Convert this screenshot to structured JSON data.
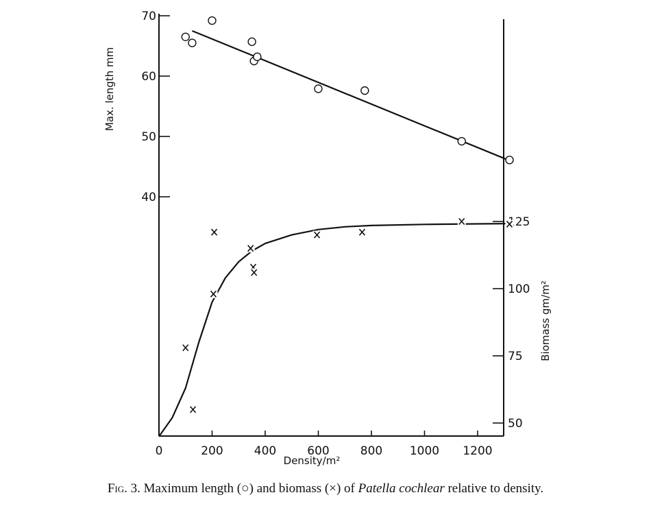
{
  "chart_data": {
    "type": "scatter",
    "xlabel": "Density/m²",
    "ylabel_left": "Max. length mm",
    "ylabel_right": "Biomass gm/m²",
    "xlim": [
      0,
      1340
    ],
    "x_ticks": [
      0,
      200,
      400,
      600,
      800,
      1000,
      1200
    ],
    "x_tick_labels": [
      "0",
      "200",
      "400",
      "600",
      "800",
      "1000",
      "1200"
    ],
    "ylim_left": [
      40,
      70
    ],
    "y_left_ticks": [
      40,
      50,
      60,
      70
    ],
    "y_left_tick_labels": [
      "40",
      "50",
      "60",
      "70"
    ],
    "ylim_right": [
      45,
      125
    ],
    "y_right_ticks": [
      50,
      75,
      100,
      125
    ],
    "y_right_tick_labels": [
      "50",
      "75",
      "100",
      "125"
    ],
    "grid": false,
    "series": [
      {
        "marker": "circle",
        "axis": "left",
        "x": [
          100,
          125,
          200,
          350,
          358,
          370,
          600,
          775,
          1140,
          1320
        ],
        "y": [
          66.5,
          65.5,
          69.2,
          65.7,
          62.5,
          63.2,
          57.9,
          57.6,
          49.2,
          46.1
        ]
      },
      {
        "marker": "cross",
        "axis": "right",
        "x": [
          100,
          128,
          205,
          208,
          345,
          355,
          358,
          595,
          765,
          1140,
          1320
        ],
        "y": [
          78,
          55,
          98,
          121,
          115,
          108,
          106,
          120,
          121,
          125,
          124
        ]
      }
    ],
    "fit_length": {
      "x": [
        125,
        1320
      ],
      "y": [
        67.5,
        46
      ]
    },
    "fit_biomass": {
      "x": [
        0,
        50,
        100,
        150,
        200,
        250,
        300,
        350,
        400,
        500,
        600,
        700,
        800,
        1000,
        1200,
        1320
      ],
      "y": [
        45,
        52,
        63,
        80,
        95,
        104,
        110,
        114,
        116.8,
        120,
        122,
        123,
        123.5,
        123.9,
        124.1,
        124.2
      ]
    }
  },
  "caption": {
    "prefix": "Fig. 3.",
    "text": "Maximum length (○) and biomass (×) of",
    "species": "Patella cochlear",
    "suffix": "relative to density."
  }
}
